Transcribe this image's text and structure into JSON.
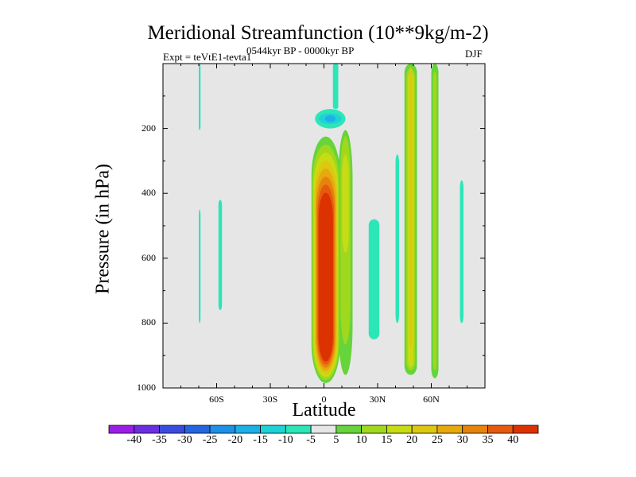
{
  "chart_data": {
    "type": "contour",
    "title": "Meridional Streamfunction (10**9kg/m-2)",
    "subtitle_left": "Expt = teVtE1-tevta1",
    "subtitle_center": "0544kyr BP - 0000kyr BP",
    "subtitle_right": "DJF",
    "xlabel": "Latitude",
    "ylabel": "Pressure (in hPa)",
    "xlim": [
      -90,
      90
    ],
    "ylim": [
      1000,
      0
    ],
    "x_ticks": [
      {
        "value": -60,
        "label": "60S"
      },
      {
        "value": -30,
        "label": "30S"
      },
      {
        "value": 0,
        "label": "0"
      },
      {
        "value": 30,
        "label": "30N"
      },
      {
        "value": 60,
        "label": "60N"
      }
    ],
    "y_ticks": [
      {
        "value": 200,
        "label": "200"
      },
      {
        "value": 400,
        "label": "400"
      },
      {
        "value": 600,
        "label": "600"
      },
      {
        "value": 800,
        "label": "800"
      },
      {
        "value": 1000,
        "label": "1000"
      }
    ],
    "colorbar": {
      "levels": [
        "-40",
        "-35",
        "-30",
        "-25",
        "-20",
        "-15",
        "-10",
        "-5",
        "5",
        "10",
        "15",
        "20",
        "25",
        "30",
        "35",
        "40"
      ],
      "colors": [
        "#9b1ee6",
        "#6a2fe0",
        "#3b4bde",
        "#2466e0",
        "#1e90e6",
        "#1cb0e6",
        "#1ed2d6",
        "#2ce6b8",
        "#e6e6e6",
        "#66d43a",
        "#a0d81e",
        "#c8dc14",
        "#dcc810",
        "#e6aa0e",
        "#e6820e",
        "#e65a0e",
        "#dc3200"
      ]
    },
    "features": [
      {
        "name": "tropical-positive-cell",
        "lat_range": [
          -7,
          9
        ],
        "p_range": [
          225,
          985
        ],
        "max": 40
      },
      {
        "name": "upper-tropical-negative",
        "lat_range": [
          -5,
          12
        ],
        "p_range": [
          140,
          200
        ],
        "min": -15
      },
      {
        "name": "column-negative-top",
        "lat_range": [
          5,
          8
        ],
        "p_range": [
          0,
          140
        ],
        "min": -5
      },
      {
        "name": "ne-positive-tongue",
        "lat_range": [
          8,
          16
        ],
        "p_range": [
          205,
          960
        ],
        "max": 15
      },
      {
        "name": "sh-midlat-negative-1",
        "lat_range": [
          -70,
          -69
        ],
        "p_range": [
          0,
          205
        ],
        "min": -5
      },
      {
        "name": "sh-midlat-negative-2",
        "lat_range": [
          -70,
          -69
        ],
        "p_range": [
          450,
          800
        ],
        "min": -5
      },
      {
        "name": "sh-midlat-negative-3",
        "lat_range": [
          -59,
          -57
        ],
        "p_range": [
          420,
          760
        ],
        "min": -5
      },
      {
        "name": "nh-positive-column-1",
        "lat_range": [
          45,
          52
        ],
        "p_range": [
          0,
          960
        ],
        "max": 20
      },
      {
        "name": "nh-positive-column-2",
        "lat_range": [
          60,
          64
        ],
        "p_range": [
          0,
          970
        ],
        "max": 10
      },
      {
        "name": "nh-negative-strip-1",
        "lat_range": [
          25,
          31
        ],
        "p_range": [
          480,
          850
        ],
        "min": -5
      },
      {
        "name": "nh-negative-strip-2",
        "lat_range": [
          40,
          42
        ],
        "p_range": [
          280,
          800
        ],
        "min": -5
      },
      {
        "name": "nh-negative-strip-3",
        "lat_range": [
          76,
          78
        ],
        "p_range": [
          360,
          800
        ],
        "min": -5
      }
    ]
  }
}
